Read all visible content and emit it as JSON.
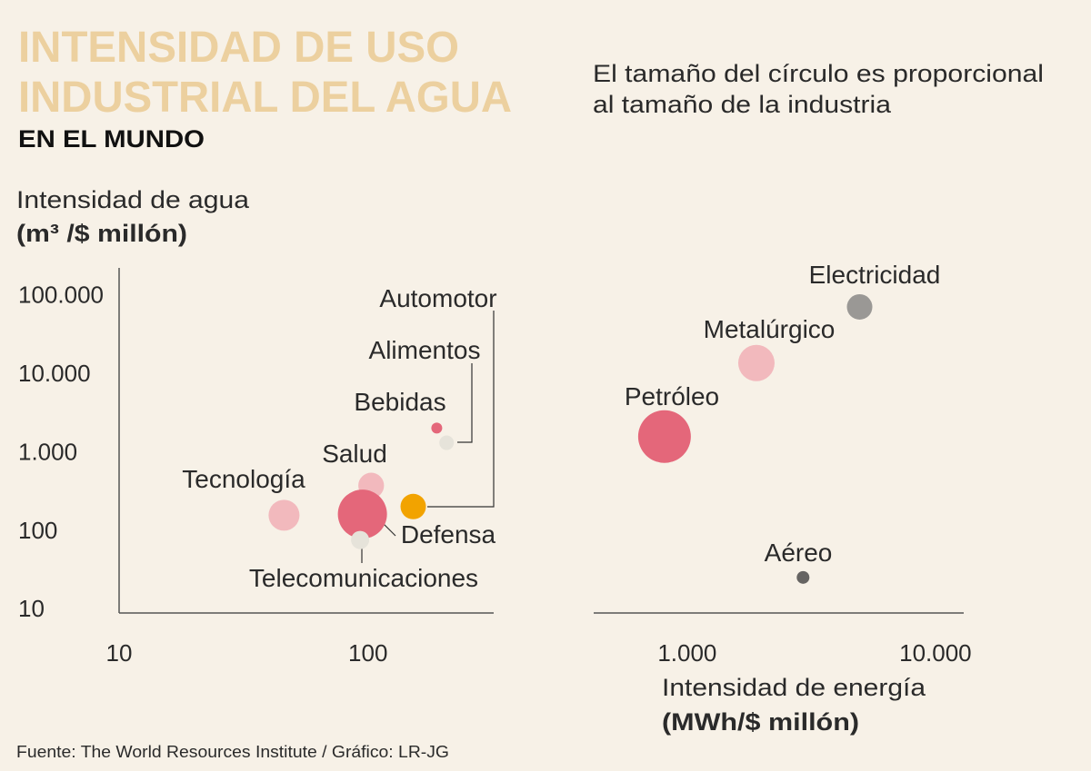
{
  "chart_data": [
    {
      "type": "scatter",
      "title": [
        "INTENSIDAD DE USO",
        "INDUSTRIAL DEL AGUA"
      ],
      "subtitle": "EN EL MUNDO",
      "note": [
        "El tamaño del círculo es proporcional",
        "al tamaño de la industria"
      ],
      "y_label": [
        "Intensidad de agua",
        "(m³ /$ millón)"
      ],
      "source": "Fuente: The World Resources Institute / Gráfico: LR-JG",
      "log_x": true,
      "log_y": true,
      "xlim": [
        10,
        320
      ],
      "ylim": [
        8.8,
        220000
      ],
      "xticks": [
        10,
        100
      ],
      "yticks": [
        {
          "value": 100000,
          "label": "100.000"
        },
        {
          "value": 10000,
          "label": "10.000"
        },
        {
          "value": 1000,
          "label": "1.000"
        },
        100,
        10
      ],
      "labels": [
        "Tecnología",
        "Salud",
        "Defensa",
        "Telecomunicaciones",
        "Bebidas",
        "Alimentos",
        "Automotor"
      ],
      "x": [
        46,
        103,
        95,
        93,
        189,
        207,
        152
      ],
      "values": [
        155,
        370,
        160,
        75,
        2000,
        1300,
        200
      ],
      "sizes": [
        290,
        200,
        730,
        100,
        36,
        64,
        196
      ],
      "colors": [
        "#f2b9bd",
        "#f2b9bd",
        "#e4677a",
        "#e6e3da",
        "#e4677a",
        "#e6e3da",
        "#f2a300"
      ]
    },
    {
      "type": "scatter",
      "x_label": [
        "Intensidad de energía",
        "(MWh/$ millón)"
      ],
      "log_x": true,
      "log_y": true,
      "xlim": [
        420,
        13000
      ],
      "ylim": [
        8.8,
        220000
      ],
      "xticks": [
        {
          "value": 1000,
          "label": "1.000"
        },
        {
          "value": 10000,
          "label": "10.000"
        }
      ],
      "labels": [
        "Electricidad",
        "Metalúrgico",
        "Petróleo",
        "Aéreo"
      ],
      "x": [
        4950,
        1900,
        810,
        2930
      ],
      "values": [
        70000,
        13500,
        1560,
        25
      ],
      "sizes": [
        196,
        400,
        840,
        49
      ],
      "colors": [
        "#9a9895",
        "#f2b9bd",
        "#e4677a",
        "#666462"
      ]
    }
  ]
}
